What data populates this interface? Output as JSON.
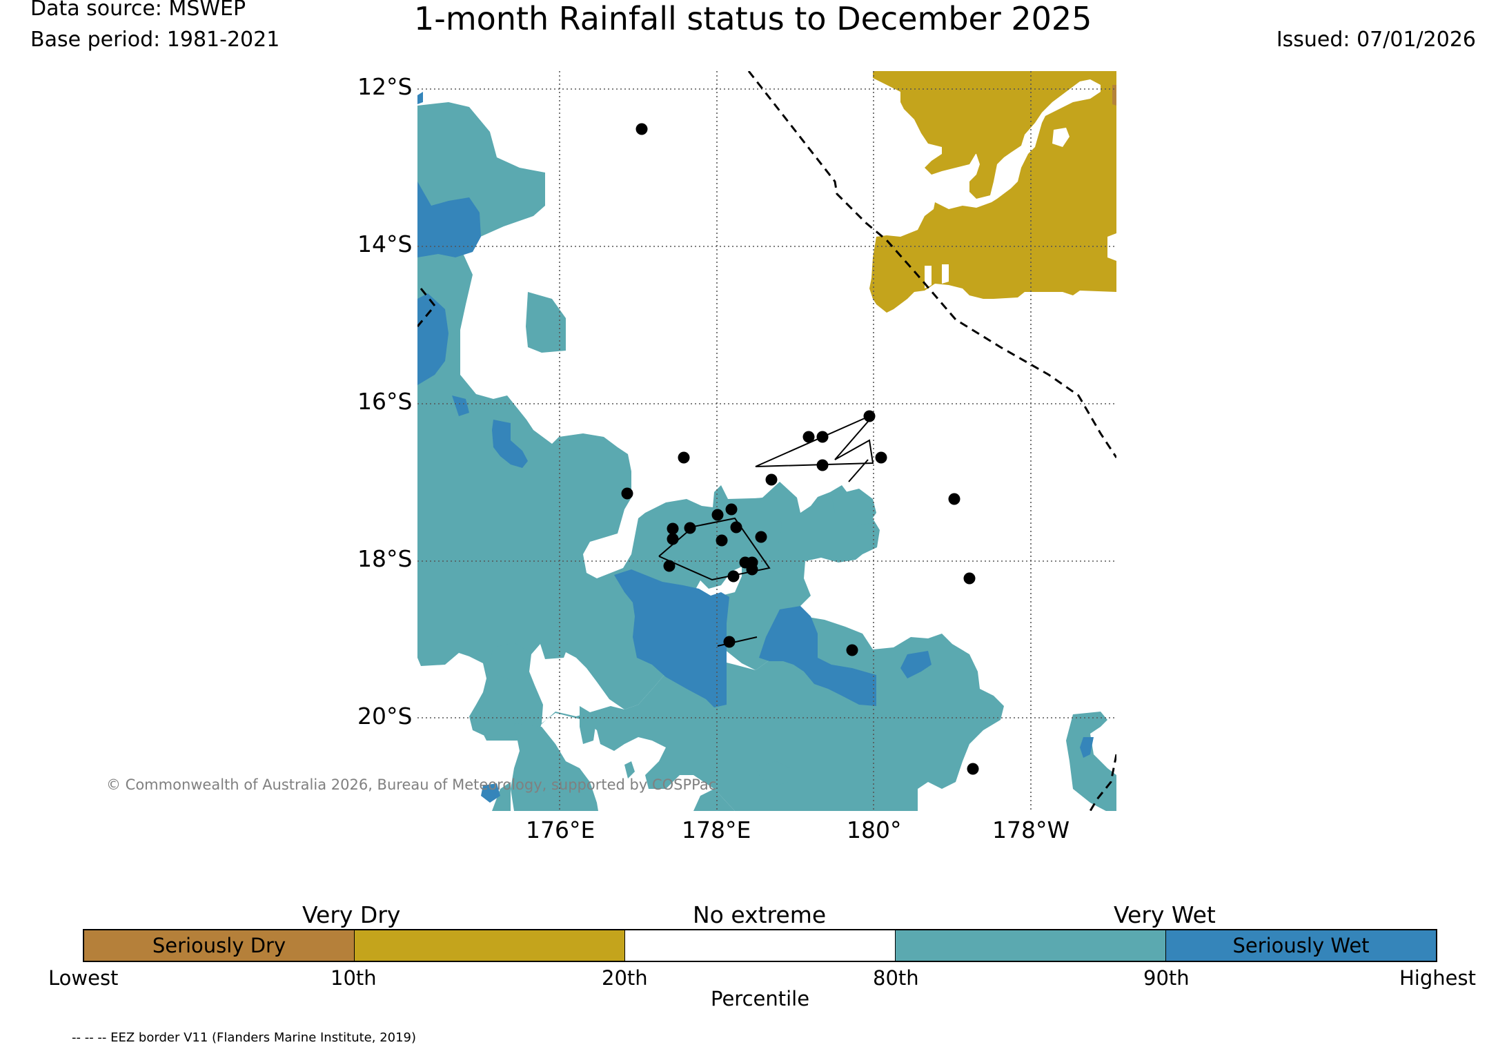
{
  "header": {
    "data_source": "Data source: MSWEP",
    "base_period": "Base period: 1981-2021",
    "title": "1-month Rainfall status to December 2025",
    "issued": "Issued: 07/01/2026"
  },
  "map": {
    "lat_labels": [
      "12°S",
      "14°S",
      "16°S",
      "18°S",
      "20°S"
    ],
    "lon_labels": [
      "176°E",
      "178°E",
      "180°",
      "178°W"
    ],
    "copyright": "© Commonwealth of Australia 2026, Bureau of Meteorology, supported by COSPPac",
    "colors": {
      "very_wet": "#5ba9b0",
      "seriously_wet": "#3585ba",
      "very_dry": "#c4a41c",
      "seriously_dry": "#b58339"
    }
  },
  "colorbar": {
    "header_labels": [
      "Very Dry",
      "No extreme",
      "Very Wet"
    ],
    "segments": [
      {
        "label": "Seriously Dry",
        "color": "#b5803a"
      },
      {
        "label": "",
        "color": "#c4a41c"
      },
      {
        "label": "",
        "color": "#ffffff"
      },
      {
        "label": "",
        "color": "#5ba9b0"
      },
      {
        "label": "Seriously Wet",
        "color": "#3585ba"
      }
    ],
    "tick_labels": [
      "Lowest",
      "10th",
      "20th",
      "80th",
      "90th",
      "Highest"
    ],
    "axis_label": "Percentile"
  },
  "footnote": "-- -- -- EEZ border V11 (Flanders Marine Institute, 2019)"
}
